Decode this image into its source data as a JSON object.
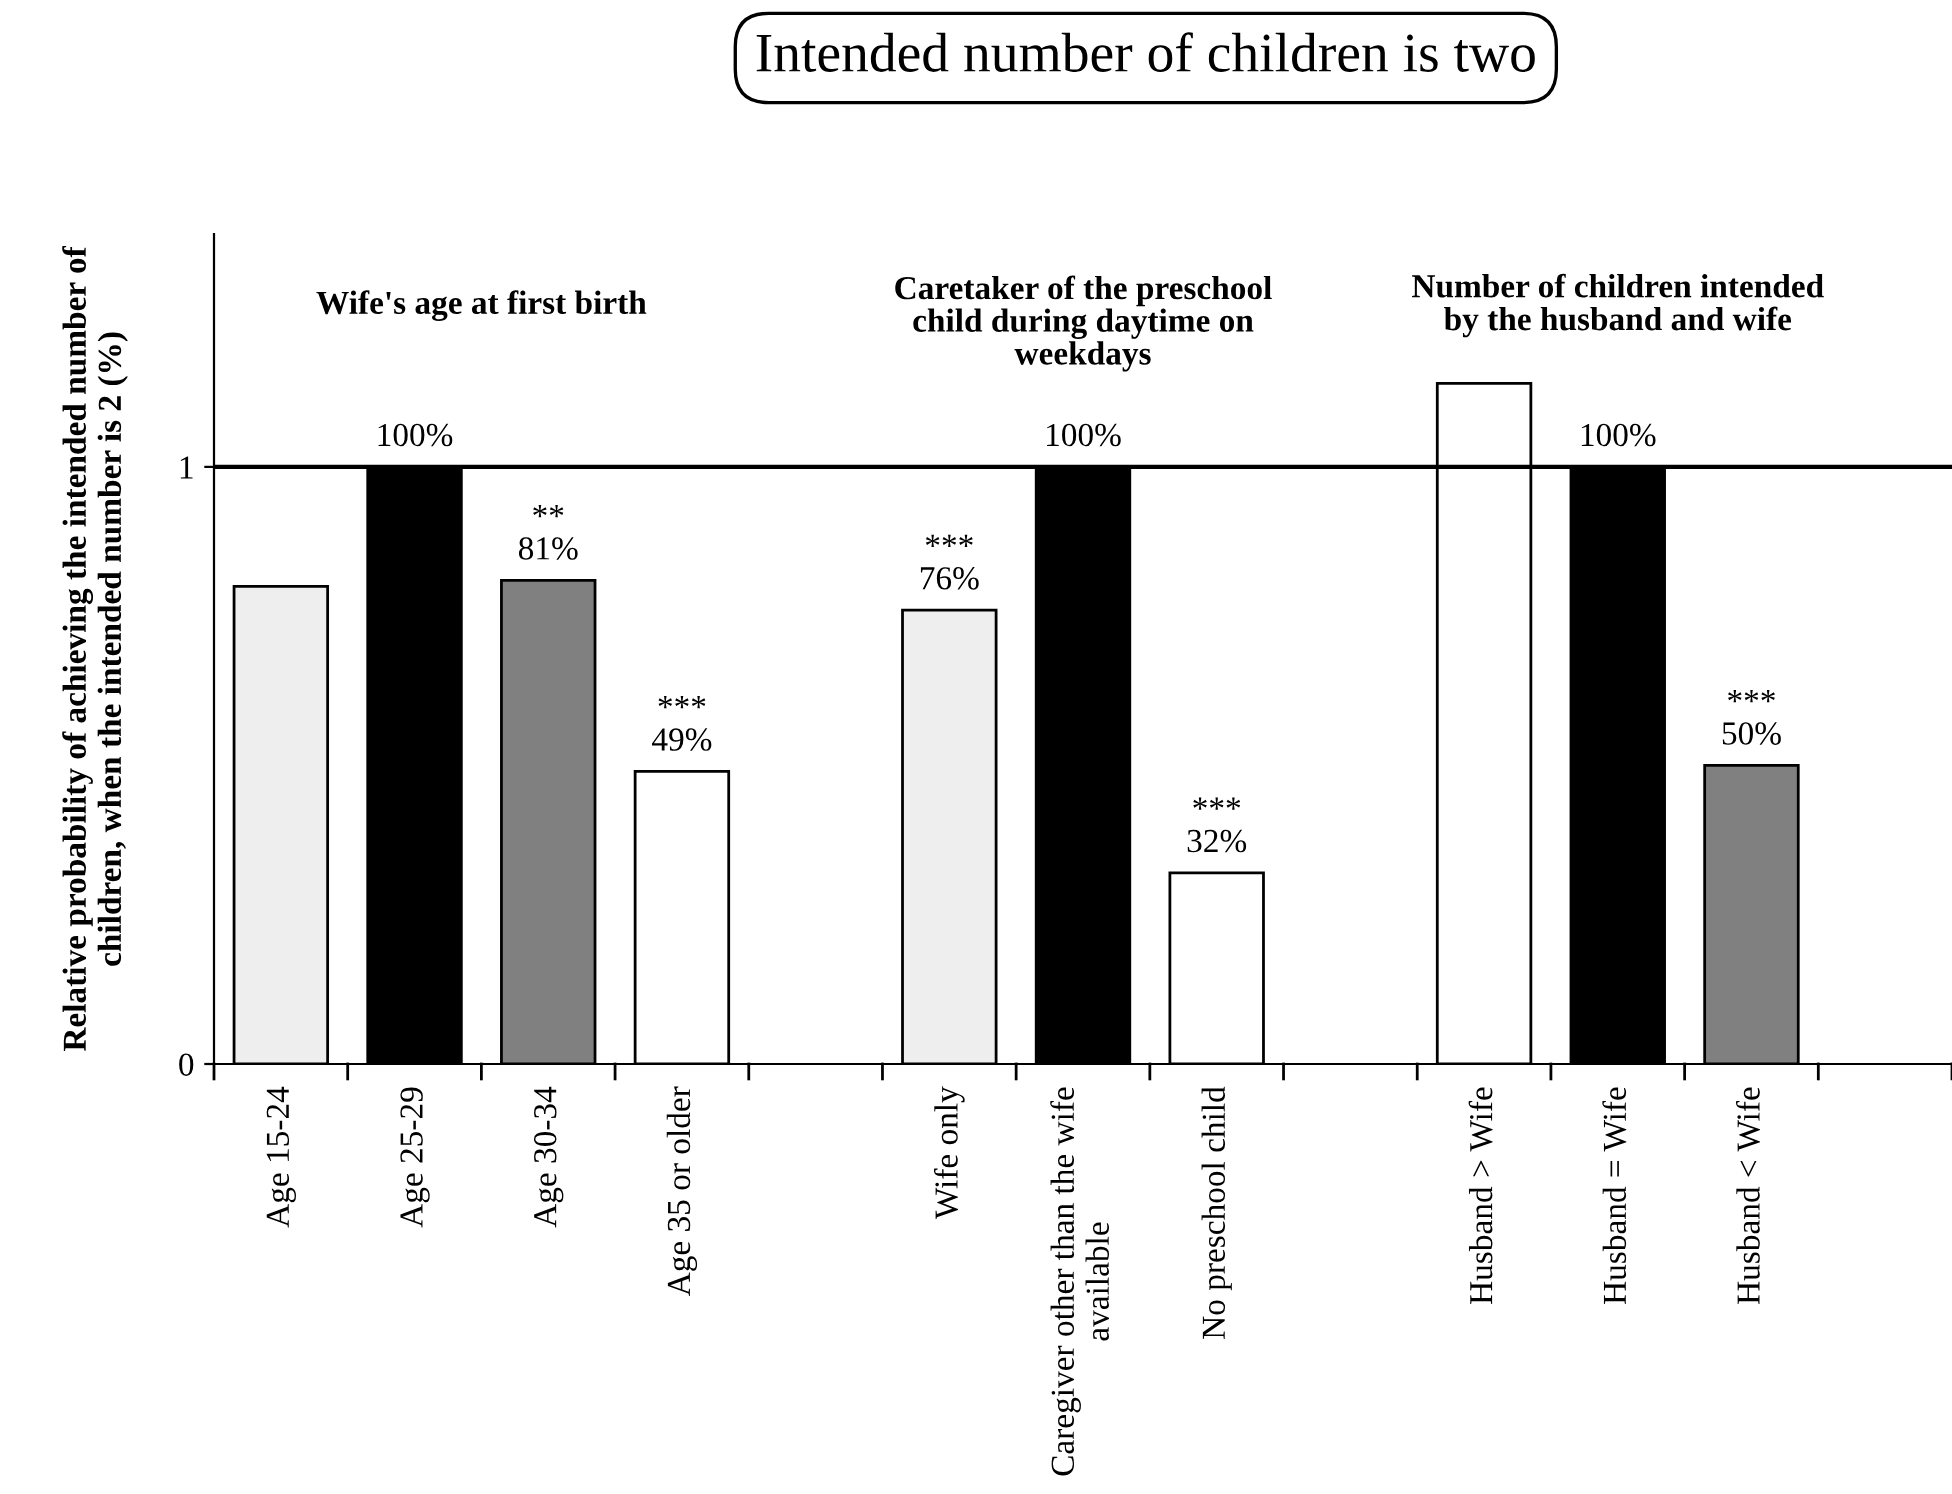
{
  "chart_data": {
    "type": "bar",
    "title": "Intended number of children is two",
    "ylabel": "Relative probability of achieving the intended number of\nchildren, when the intended number is 2 (%)",
    "categories": [
      "Age 15-24",
      "Age 25-29",
      "Age 30-34",
      "Age 35 or older",
      null,
      "Wife only",
      "Caregiver other than the wife\navailable",
      "No preschool child",
      null,
      "Husband > Wife",
      "Husband = Wife",
      "Husband < Wife",
      null
    ],
    "values": [
      0.8,
      1,
      0.81,
      0.49,
      null,
      0.76,
      1,
      0.32,
      null,
      1.14,
      1,
      0.5,
      null
    ],
    "value_labels": [
      null,
      "100%",
      "**\n81%",
      "***\n49%",
      null,
      "***\n76%",
      "100%",
      "***\n32%",
      null,
      null,
      "100%",
      "***\n50%",
      null
    ],
    "colors": [
      "#eeeeee",
      "#000000",
      "#808080",
      "#ffffff",
      null,
      "#eeeeee",
      "#000000",
      "#ffffff",
      null,
      "#ffffff",
      "#000000",
      "#808080",
      null
    ],
    "annotations": [
      "Wife's age at first birth",
      "Caretaker of the preschool\nchild during daytime on\nweekdays",
      "Number of children intended\nby the husband and wife"
    ],
    "ref_lines": [
      {
        "axis": "y",
        "value": 1,
        "color": "#000000"
      }
    ],
    "ylim": [
      0,
      1.39
    ],
    "yticks": [
      0,
      1
    ],
    "grid": false
  }
}
